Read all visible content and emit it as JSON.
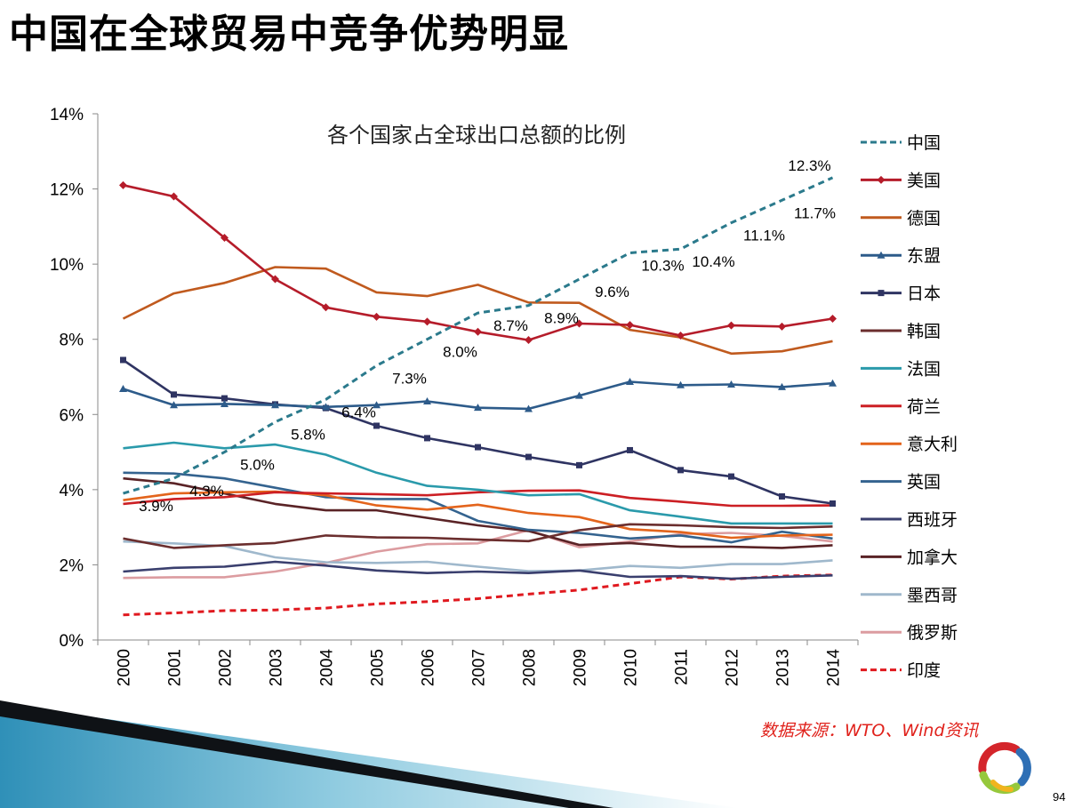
{
  "slide": {
    "title": "中国在全球贸易中竞争优势明显",
    "source": "数据来源：WTO、Wind资讯",
    "page_number": "94"
  },
  "chart_data": {
    "type": "line",
    "title": "各个国家占全球出口总额的比例",
    "xlabel": "",
    "ylabel": "",
    "ylim": [
      0,
      14
    ],
    "yticks": [
      "0%",
      "2%",
      "4%",
      "6%",
      "8%",
      "10%",
      "12%",
      "14%"
    ],
    "grid": false,
    "legend_position": "right",
    "x": [
      "2000",
      "2001",
      "2002",
      "2003",
      "2004",
      "2005",
      "2006",
      "2007",
      "2008",
      "2009",
      "2010",
      "2011",
      "2012",
      "2013",
      "2014"
    ],
    "series": [
      {
        "name": "中国",
        "color": "#2b7a8c",
        "style": "dashed",
        "marker": "none",
        "values": [
          3.9,
          4.3,
          5.0,
          5.8,
          6.4,
          7.3,
          8.0,
          8.7,
          8.9,
          9.6,
          10.3,
          10.4,
          11.1,
          11.7,
          12.3
        ],
        "labels": [
          "3.9%",
          "4.3%",
          "5.0%",
          "5.8%",
          "6.4%",
          "7.3%",
          "8.0%",
          "8.7%",
          "8.9%",
          "9.6%",
          "10.3%",
          "10.4%",
          "11.1%",
          "11.7%",
          "12.3%"
        ]
      },
      {
        "name": "美国",
        "color": "#b51c2a",
        "style": "solid",
        "marker": "diamond",
        "values": [
          12.1,
          11.8,
          10.7,
          9.6,
          8.85,
          8.6,
          8.47,
          8.2,
          7.98,
          8.42,
          8.38,
          8.1,
          8.37,
          8.34,
          8.55
        ]
      },
      {
        "name": "德国",
        "color": "#c05a1e",
        "style": "solid",
        "marker": "none",
        "values": [
          8.55,
          9.22,
          9.5,
          9.92,
          9.88,
          9.25,
          9.15,
          9.45,
          8.98,
          8.97,
          8.25,
          8.05,
          7.62,
          7.68,
          7.95
        ]
      },
      {
        "name": "东盟",
        "color": "#2d5b8a",
        "style": "solid",
        "marker": "triangle",
        "values": [
          6.68,
          6.25,
          6.28,
          6.25,
          6.2,
          6.25,
          6.35,
          6.18,
          6.15,
          6.5,
          6.87,
          6.78,
          6.8,
          6.73,
          6.83
        ]
      },
      {
        "name": "日本",
        "color": "#2f3462",
        "style": "solid",
        "marker": "square",
        "values": [
          7.45,
          6.53,
          6.43,
          6.27,
          6.17,
          5.7,
          5.37,
          5.13,
          4.87,
          4.65,
          5.05,
          4.52,
          4.35,
          3.82,
          3.63
        ]
      },
      {
        "name": "韩国",
        "color": "#6b2e2e",
        "style": "solid",
        "marker": "none",
        "values": [
          2.7,
          2.45,
          2.52,
          2.58,
          2.78,
          2.73,
          2.72,
          2.67,
          2.63,
          2.92,
          3.08,
          3.05,
          3.0,
          2.98,
          3.02
        ]
      },
      {
        "name": "法国",
        "color": "#2a9aab",
        "style": "solid",
        "marker": "none",
        "values": [
          5.1,
          5.25,
          5.1,
          5.2,
          4.93,
          4.45,
          4.1,
          4.0,
          3.85,
          3.88,
          3.45,
          3.28,
          3.1,
          3.1,
          3.1
        ]
      },
      {
        "name": "荷兰",
        "color": "#cc1f24",
        "style": "solid",
        "marker": "none",
        "values": [
          3.62,
          3.75,
          3.8,
          3.93,
          3.9,
          3.88,
          3.85,
          3.93,
          3.97,
          3.98,
          3.78,
          3.68,
          3.57,
          3.57,
          3.58
        ]
      },
      {
        "name": "意大利",
        "color": "#e3641c",
        "style": "solid",
        "marker": "none",
        "values": [
          3.72,
          3.9,
          3.93,
          3.95,
          3.85,
          3.58,
          3.47,
          3.6,
          3.38,
          3.27,
          2.95,
          2.87,
          2.72,
          2.78,
          2.8
        ]
      },
      {
        "name": "英国",
        "color": "#34638f",
        "style": "solid",
        "marker": "none",
        "values": [
          4.45,
          4.43,
          4.3,
          4.05,
          3.8,
          3.75,
          3.75,
          3.17,
          2.93,
          2.85,
          2.7,
          2.78,
          2.6,
          2.88,
          2.7
        ]
      },
      {
        "name": "西班牙",
        "color": "#3a3f6e",
        "style": "solid",
        "marker": "none",
        "values": [
          1.82,
          1.92,
          1.95,
          2.08,
          1.98,
          1.85,
          1.78,
          1.82,
          1.78,
          1.85,
          1.68,
          1.7,
          1.63,
          1.68,
          1.72
        ]
      },
      {
        "name": "加拿大",
        "color": "#5a2326",
        "style": "solid",
        "marker": "none",
        "values": [
          4.3,
          4.17,
          3.9,
          3.62,
          3.45,
          3.45,
          3.25,
          3.05,
          2.9,
          2.53,
          2.58,
          2.48,
          2.48,
          2.45,
          2.52
        ]
      },
      {
        "name": "墨西哥",
        "color": "#9fb8cc",
        "style": "solid",
        "marker": "none",
        "values": [
          2.62,
          2.57,
          2.5,
          2.2,
          2.07,
          2.05,
          2.08,
          1.95,
          1.83,
          1.85,
          1.97,
          1.92,
          2.02,
          2.02,
          2.12
        ]
      },
      {
        "name": "俄罗斯",
        "color": "#dc9ca0",
        "style": "solid",
        "marker": "none",
        "values": [
          1.65,
          1.67,
          1.67,
          1.82,
          2.05,
          2.35,
          2.55,
          2.57,
          2.92,
          2.47,
          2.62,
          2.82,
          2.85,
          2.77,
          2.62
        ]
      },
      {
        "name": "印度",
        "color": "#e0191f",
        "style": "dashed",
        "marker": "none",
        "values": [
          0.67,
          0.72,
          0.78,
          0.8,
          0.85,
          0.96,
          1.02,
          1.1,
          1.22,
          1.33,
          1.5,
          1.68,
          1.62,
          1.7,
          1.73
        ]
      }
    ]
  }
}
